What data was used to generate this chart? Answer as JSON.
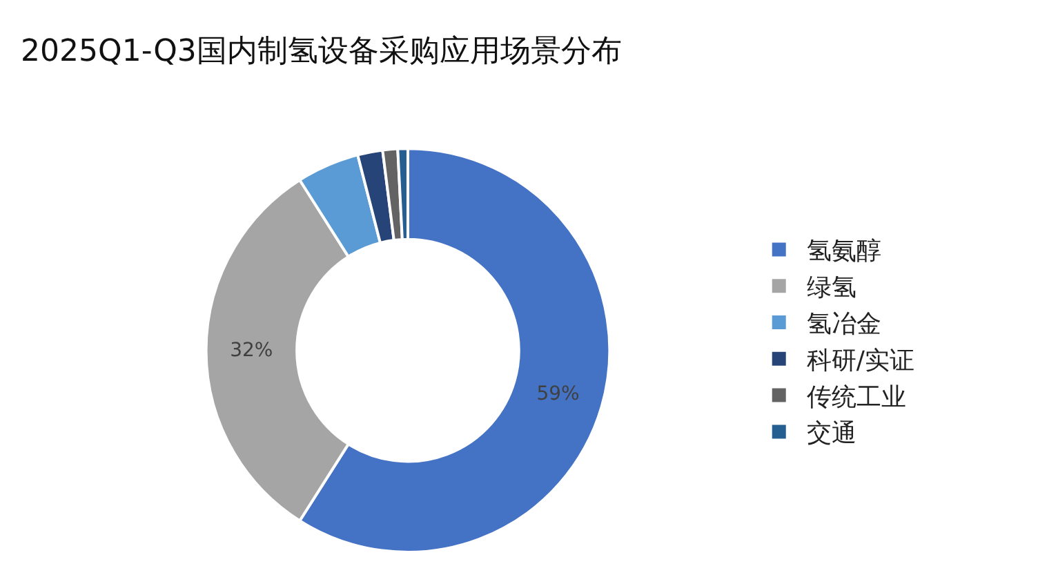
{
  "chart_data": {
    "type": "donut",
    "title": "2025Q1-Q3国内制氢设备采购应用场景分布",
    "categories": [
      "氢氨醇",
      "绿氢",
      "氢冶金",
      "科研/实证",
      "传统工业",
      "交通"
    ],
    "values": [
      59,
      32,
      5,
      2,
      1.2,
      0.8
    ],
    "colors": [
      "#4472c4",
      "#a5a5a5",
      "#5b9bd5",
      "#264478",
      "#636363",
      "#255e91"
    ],
    "value_labels": [
      "59%",
      "32%",
      null,
      null,
      null,
      null
    ],
    "legend": "right"
  }
}
